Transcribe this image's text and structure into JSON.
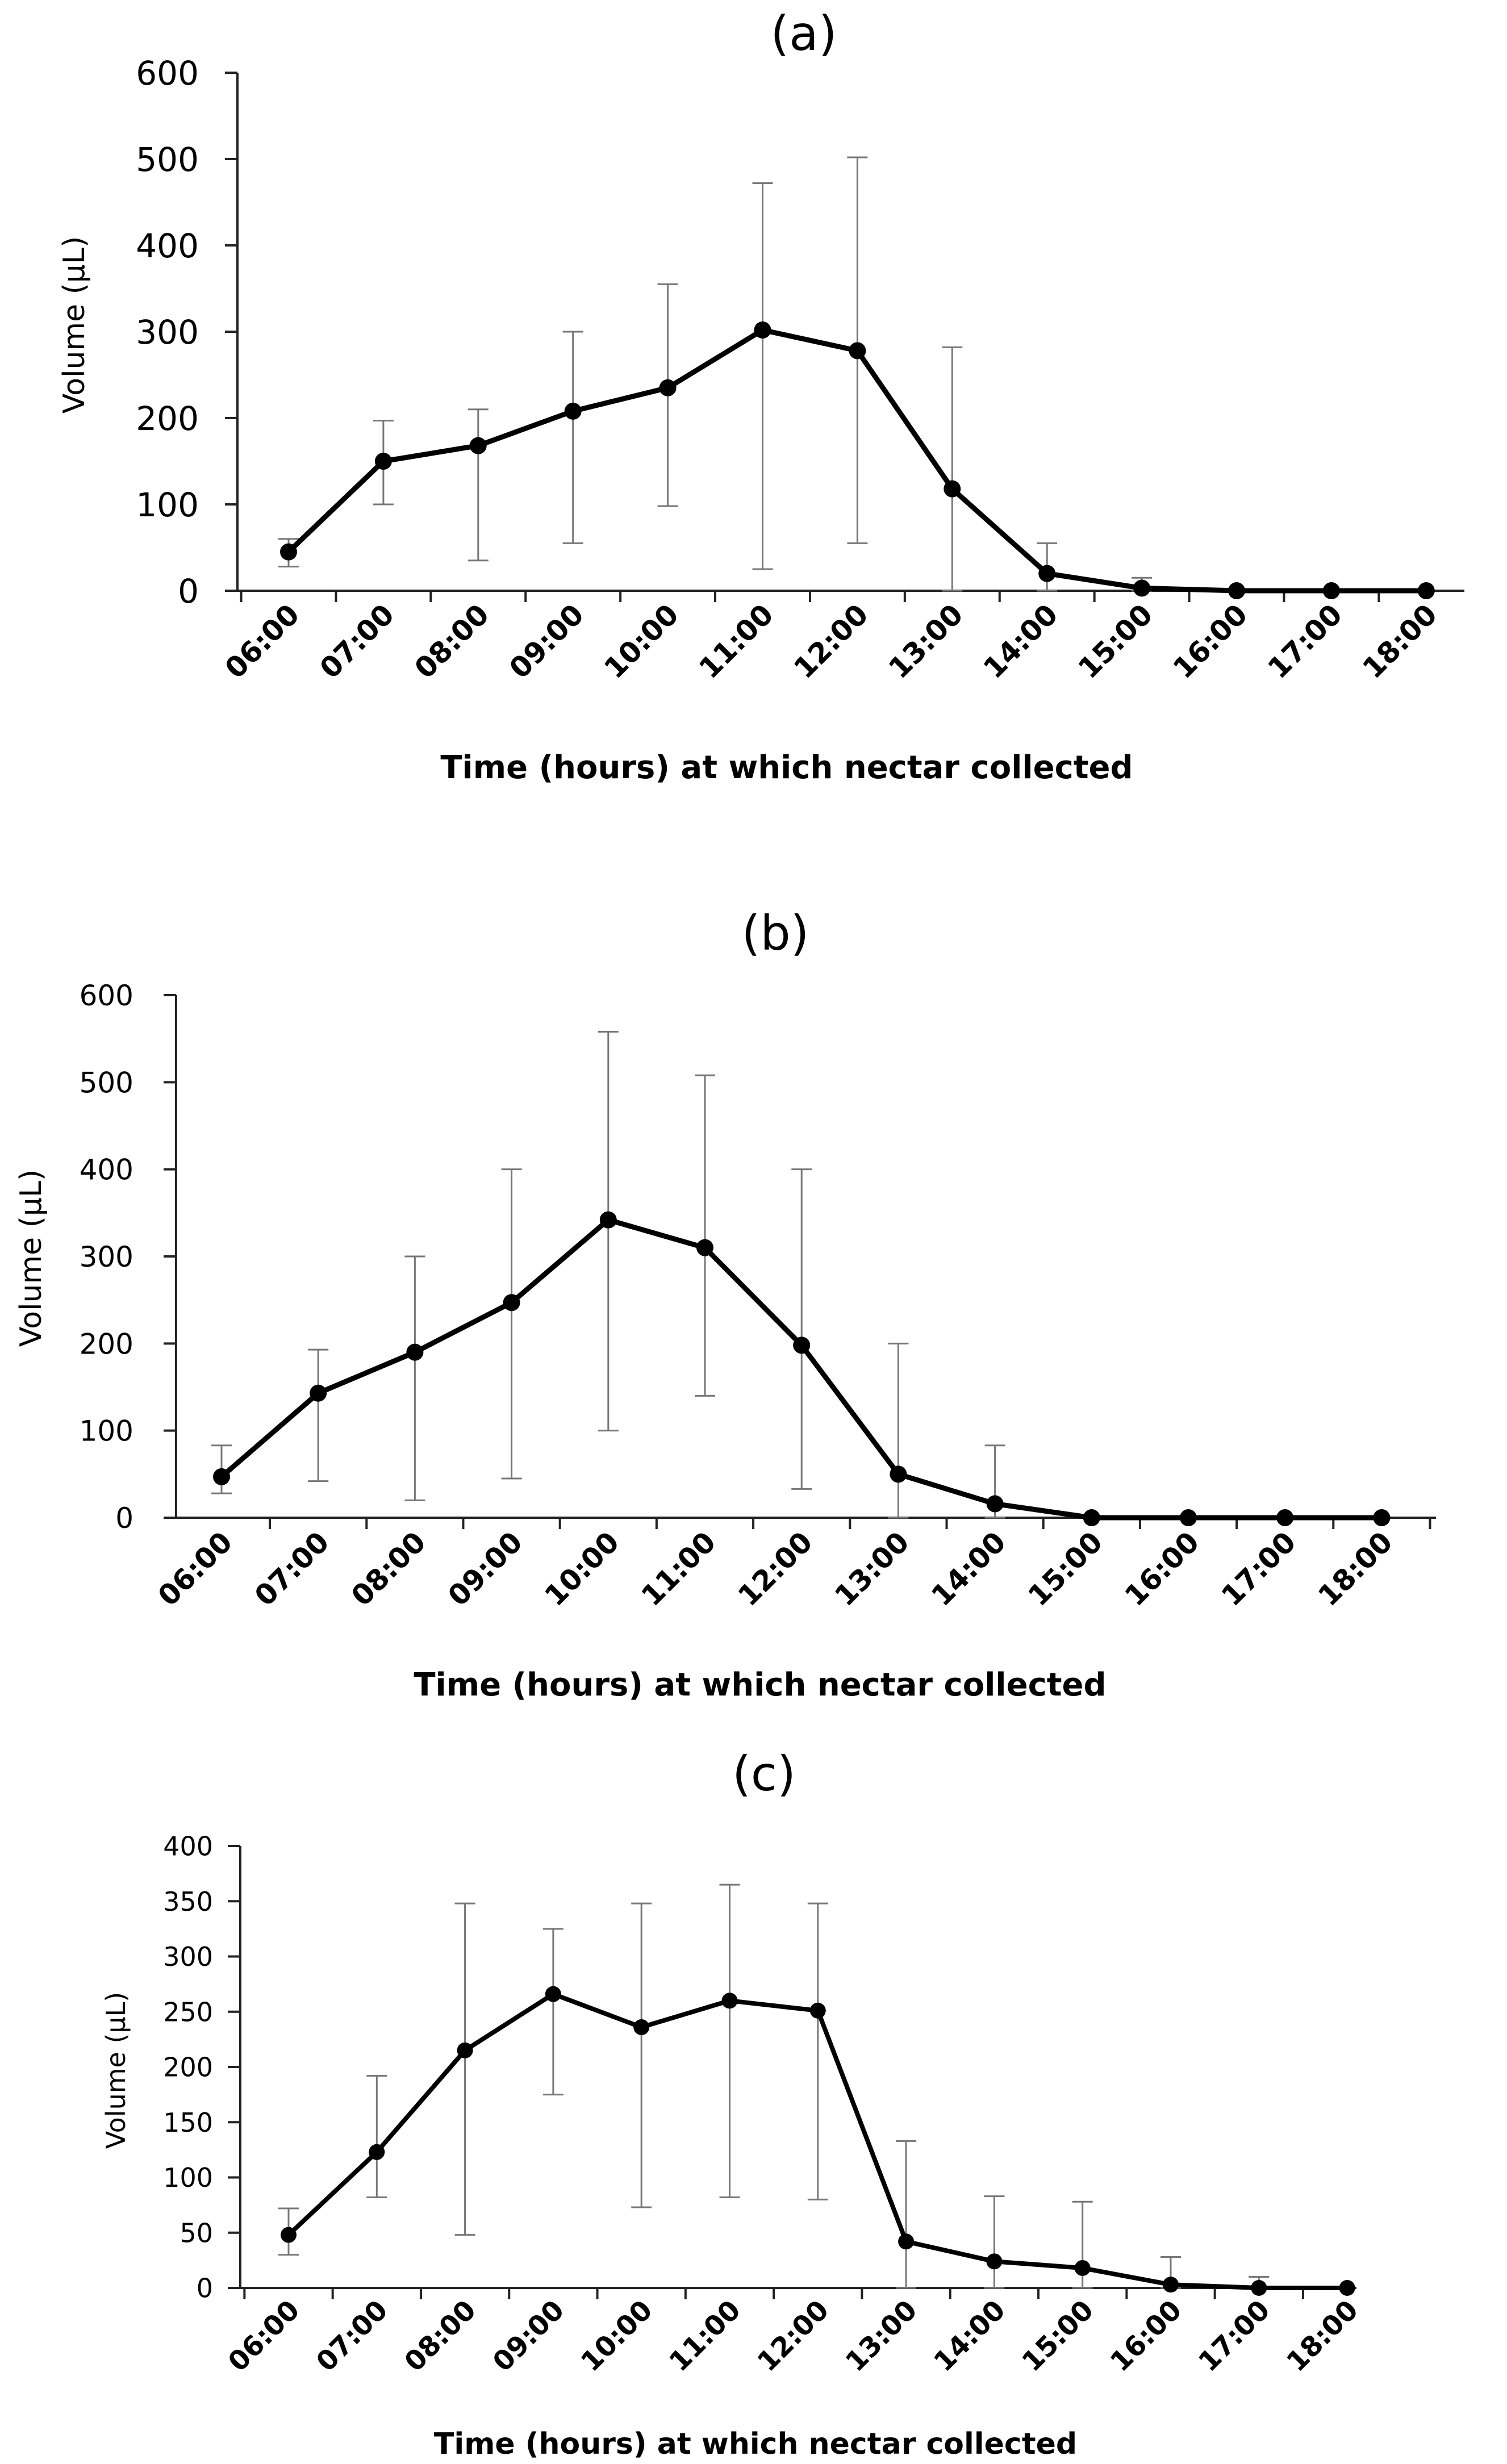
{
  "chart_data": [
    {
      "type": "line",
      "title": "(a)",
      "xlabel": "Time (hours) at which nectar collected",
      "ylabel": "Volume (µL)",
      "ylim": [
        0,
        600
      ],
      "yticks": [
        0,
        100,
        200,
        300,
        400,
        500,
        600
      ],
      "categories": [
        "06:00",
        "07:00",
        "08:00",
        "09:00",
        "10:00",
        "11:00",
        "12:00",
        "13:00",
        "14:00",
        "15:00",
        "16:00",
        "17:00",
        "18:00"
      ],
      "series": [
        {
          "name": "Volume",
          "values": [
            45,
            150,
            168,
            208,
            235,
            302,
            278,
            118,
            20,
            3,
            0,
            0,
            0
          ],
          "error_low": [
            28,
            100,
            35,
            55,
            98,
            25,
            55,
            0,
            0,
            0,
            0,
            0,
            0
          ],
          "error_high": [
            60,
            197,
            210,
            300,
            355,
            472,
            502,
            282,
            55,
            15,
            0,
            0,
            0
          ]
        }
      ],
      "grid": false
    },
    {
      "type": "line",
      "title": "(b)",
      "xlabel": "Time (hours) at which nectar collected",
      "ylabel": "Volume (µL)",
      "ylim": [
        0,
        600
      ],
      "yticks": [
        0,
        100,
        200,
        300,
        400,
        500,
        600
      ],
      "categories": [
        "06:00",
        "07:00",
        "08:00",
        "09:00",
        "10:00",
        "11:00",
        "12:00",
        "13:00",
        "14:00",
        "15:00",
        "16:00",
        "17:00",
        "18:00"
      ],
      "series": [
        {
          "name": "Volume",
          "values": [
            47,
            143,
            190,
            247,
            342,
            310,
            198,
            50,
            16,
            0,
            0,
            0,
            0
          ],
          "error_low": [
            28,
            42,
            20,
            45,
            100,
            140,
            33,
            0,
            0,
            0,
            0,
            0,
            0
          ],
          "error_high": [
            83,
            193,
            300,
            400,
            558,
            508,
            400,
            200,
            83,
            0,
            0,
            0,
            0
          ]
        }
      ],
      "grid": false
    },
    {
      "type": "line",
      "title": "(c)",
      "xlabel": "Time (hours) at which nectar collected",
      "ylabel": "Volume (µL)",
      "ylim": [
        0,
        400
      ],
      "yticks": [
        0,
        50,
        100,
        150,
        200,
        250,
        300,
        350,
        400
      ],
      "categories": [
        "06:00",
        "07:00",
        "08:00",
        "09:00",
        "10:00",
        "11:00",
        "12:00",
        "13:00",
        "14:00",
        "15:00",
        "16:00",
        "17:00",
        "18:00"
      ],
      "series": [
        {
          "name": "Volume",
          "values": [
            48,
            123,
            215,
            266,
            236,
            260,
            251,
            42,
            24,
            18,
            3,
            0,
            0
          ],
          "error_low": [
            30,
            82,
            48,
            175,
            73,
            82,
            80,
            0,
            0,
            0,
            0,
            0,
            0
          ],
          "error_high": [
            72,
            192,
            348,
            325,
            348,
            365,
            348,
            133,
            83,
            78,
            28,
            10,
            0
          ]
        }
      ],
      "grid": false
    }
  ]
}
